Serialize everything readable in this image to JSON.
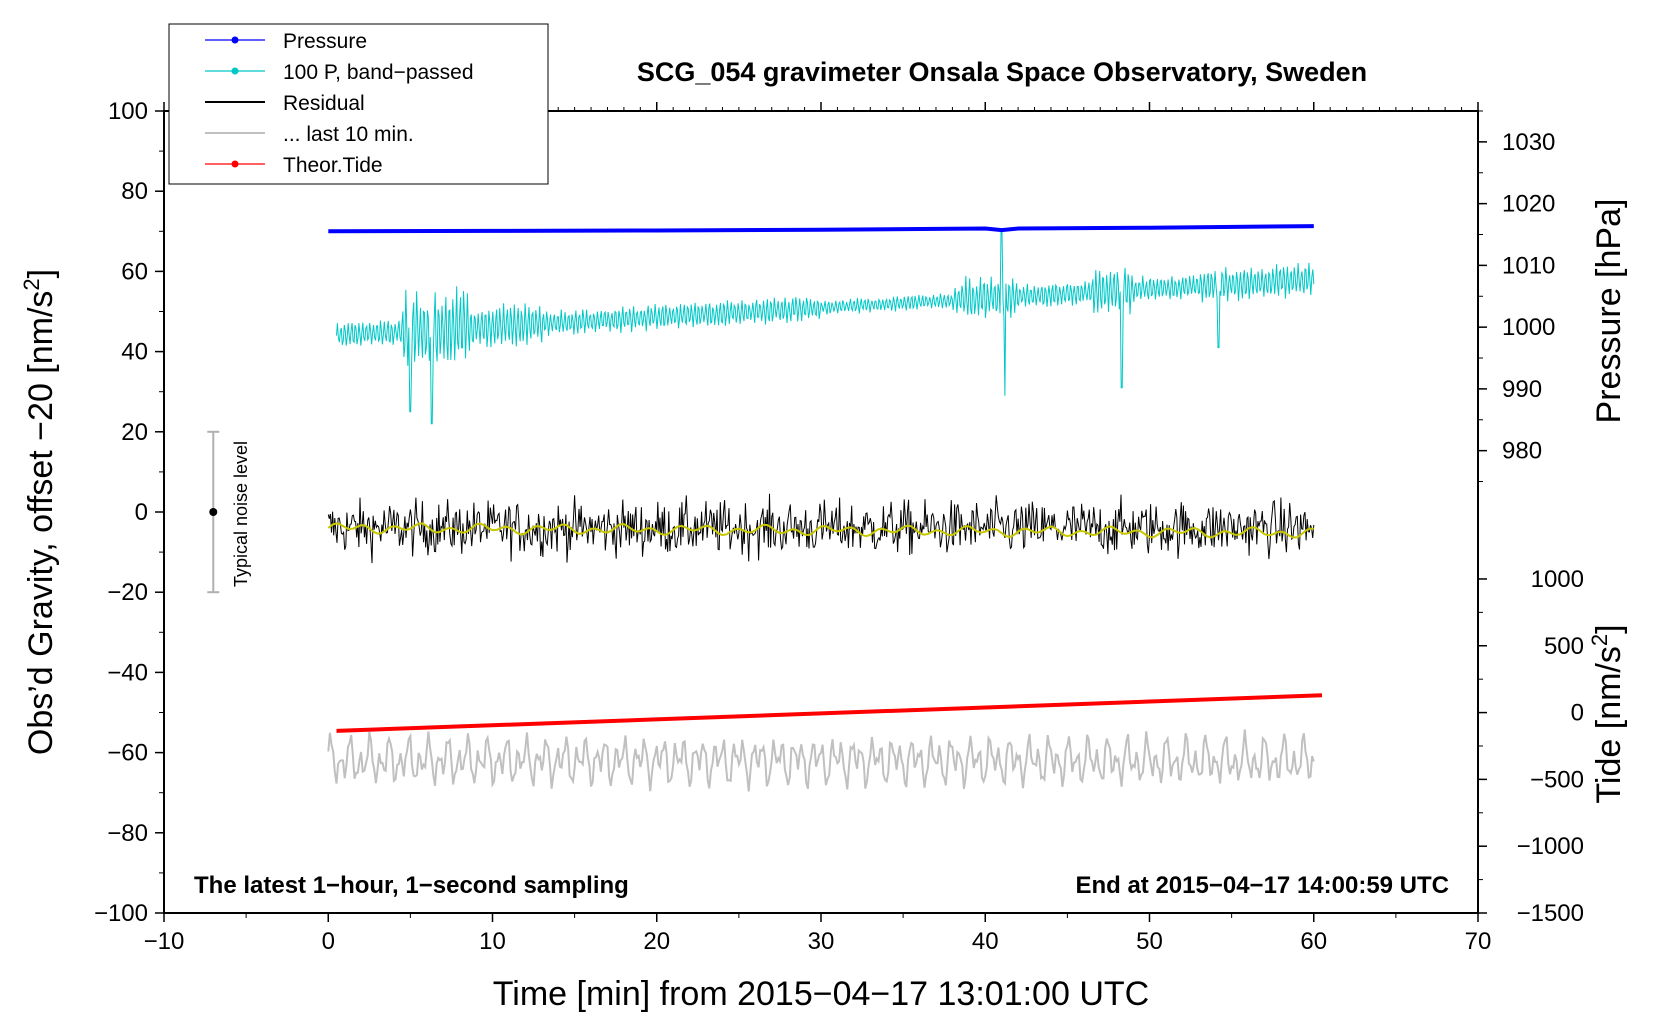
{
  "chart_data": {
    "type": "line",
    "title": "SCG_054 gravimeter Onsala Space Observatory, Sweden",
    "xlabel": "Time [min] from 2015−04−17 13:01:00 UTC",
    "ylabel_left": "Obs’d Gravity, offset −20 [nm/s²]",
    "ylabel_left_main": "Obs’d Gravity, offset −20 [nm/s",
    "ylabel_left_sup": "2",
    "ylabel_left_end": "]",
    "ylabel_pressure": "Pressure [hPa]",
    "ylabel_tide_main": "Tide [nm/s",
    "ylabel_tide_sup": "2",
    "ylabel_tide_end": "]",
    "xlim": [
      -10,
      70
    ],
    "ylim": [
      -100,
      100
    ],
    "x_ticks": [
      "−10",
      "0",
      "10",
      "20",
      "30",
      "40",
      "50",
      "60",
      "70"
    ],
    "x_tick_values": [
      -10,
      0,
      10,
      20,
      30,
      40,
      50,
      60,
      70
    ],
    "y_ticks": [
      "100",
      "80",
      "60",
      "40",
      "20",
      "0",
      "−20",
      "−40",
      "−60",
      "−80",
      "−100"
    ],
    "y_tick_values": [
      100,
      80,
      60,
      40,
      20,
      0,
      -20,
      -40,
      -60,
      -80,
      -100
    ],
    "pressure_ticks": [
      "1030",
      "1020",
      "1010",
      "1000",
      "990",
      "980"
    ],
    "pressure_tick_values": [
      1030,
      1020,
      1010,
      1000,
      990,
      980
    ],
    "pressure_to_left": {
      "p1": 1030,
      "y1": 92.3,
      "p2": 980,
      "y2": 15.3
    },
    "tide_ticks": [
      "1000",
      "500",
      "0",
      "−500",
      "−1000",
      "−1500"
    ],
    "tide_tick_values": [
      1000,
      500,
      0,
      -500,
      -1000,
      -1500
    ],
    "tide_to_left": {
      "t1": 1000,
      "y1": -16.7,
      "t2": -1500,
      "y2": -100
    },
    "note_left": "The latest 1−hour, 1−second sampling",
    "note_right": "End at 2015−04−17 14:00:59 UTC",
    "noise_label": "Typical noise level",
    "noise_bar": {
      "x": -7,
      "center": 0,
      "low": -20,
      "high": 20
    },
    "series": [
      {
        "name": "Pressure",
        "color": "#0000ff",
        "x": [
          0,
          10,
          20,
          30,
          40,
          41,
          42,
          50,
          60
        ],
        "y": [
          70.0,
          70.1,
          70.2,
          70.4,
          70.7,
          70.3,
          70.7,
          70.9,
          71.3
        ]
      },
      {
        "name": "100 P, band−passed",
        "color": "#00c8c8",
        "x_start": 0.5,
        "x_end": 60,
        "approx_envelope": {
          "center_start": 44,
          "center_end": 58,
          "spikes": [
            [
              5.0,
              25
            ],
            [
              6.3,
              22
            ],
            [
              41.2,
              29
            ],
            [
              41.0,
              70
            ],
            [
              48.3,
              31
            ],
            [
              54.2,
              41
            ]
          ]
        }
      },
      {
        "name": "Residual",
        "color": "#000000",
        "x_start": 0,
        "x_end": 60,
        "approx_mean": -4,
        "approx_amplitude": 10
      },
      {
        "name": "... last 10 min.",
        "color": "#c0c0c0",
        "x_start": 0,
        "x_end": 60,
        "approx_mean": -62,
        "approx_amplitude": 6
      },
      {
        "name": "Theor.Tide",
        "color": "#ff0000",
        "x": [
          0.5,
          60.5
        ],
        "y": [
          -54.6,
          -45.7
        ]
      }
    ],
    "smoothed_residual": {
      "color": "#c8c800",
      "approx_mean": -4
    },
    "legend_position": "top-left"
  }
}
